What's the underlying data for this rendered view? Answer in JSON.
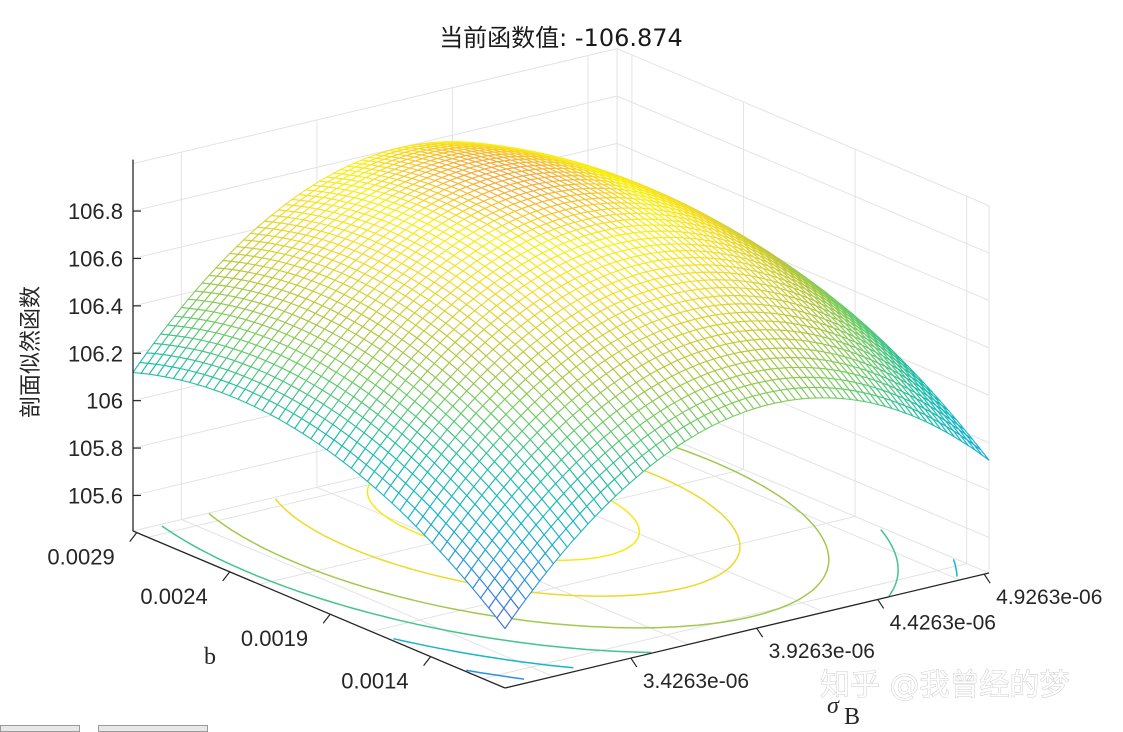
{
  "title": "当前函数值: -106.874",
  "zlabel": "剖面似然函数",
  "xlabel": "b",
  "ylabel_main": "σ",
  "ylabel_sub": "B",
  "watermark": "知乎 @我曾经的梦",
  "chart_data": {
    "type": "surface",
    "title": "当前函数值: -106.874",
    "zlabel": "剖面似然函数",
    "xlabel": "b",
    "ylabel": "σB",
    "z_ticks": [
      "105.6",
      "105.8",
      "106",
      "106.2",
      "106.4",
      "106.6",
      "106.8"
    ],
    "z_tick_values": [
      105.6,
      105.8,
      106.0,
      106.2,
      106.4,
      106.6,
      106.8
    ],
    "b_ticks": [
      "0.0014",
      "0.0019",
      "0.0024",
      "0.0029"
    ],
    "b_tick_values": [
      0.0014,
      0.0019,
      0.0024,
      0.0029
    ],
    "sigma_ticks": [
      "3.4263e-06",
      "3.9263e-06",
      "4.4263e-06",
      "4.9263e-06"
    ],
    "sigma_tick_values": [
      3.4263e-06,
      3.9263e-06,
      4.4263e-06,
      4.9263e-06
    ],
    "surface_max": 106.874,
    "surface_min": 105.48,
    "colormap": "parula",
    "grid": true,
    "contour_projection": true,
    "colors": {
      "low": "#3e26a8",
      "mid": "#21b5a5",
      "high": "#f9fb0e",
      "peak": "#f5a53a"
    }
  }
}
